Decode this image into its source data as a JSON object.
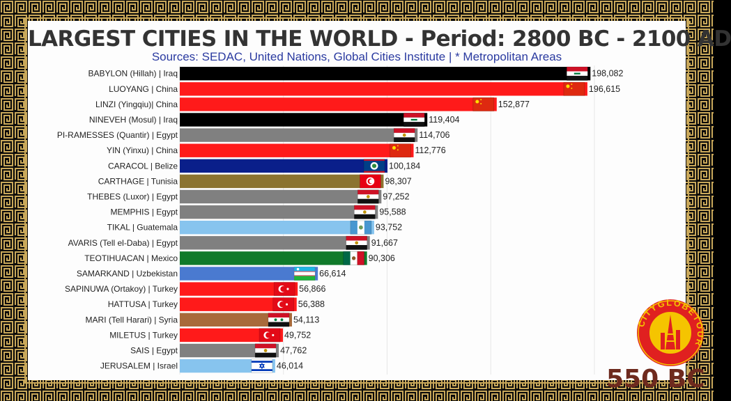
{
  "title": "LARGEST CITIES IN THE WORLD - Period: 2800 BC - 2100 AD",
  "subtitle": "Sources: SEDAC, United Nations, Global Cities Institute | * Metropolitan Areas",
  "period_label": "550 BC",
  "logo": {
    "text": "CITYGLOBETOUR",
    "ring_color": "#e02020",
    "inner_color": "#f5c400"
  },
  "chart_data": {
    "type": "bar",
    "orientation": "horizontal",
    "x_range": [
      0,
      200000
    ],
    "grid": true,
    "bars": [
      {
        "label": "BABYLON (Hillah) | Iraq",
        "value": 198082,
        "value_label": "198,082",
        "color": "#000000",
        "flag": "iraq"
      },
      {
        "label": "LUOYANG | China",
        "value": 196615,
        "value_label": "196,615",
        "color": "#ff1a1a",
        "flag": "china"
      },
      {
        "label": "LINZI (Yingqiu)| China",
        "value": 152877,
        "value_label": "152,877",
        "color": "#ff1a1a",
        "flag": "china"
      },
      {
        "label": "NINEVEH (Mosul) | Iraq",
        "value": 119404,
        "value_label": "119,404",
        "color": "#000000",
        "flag": "iraq"
      },
      {
        "label": "PI-RAMESSES (Quantir) | Egypt",
        "value": 114706,
        "value_label": "114,706",
        "color": "#808080",
        "flag": "egypt"
      },
      {
        "label": "YIN (Yinxu) | China",
        "value": 112776,
        "value_label": "112,776",
        "color": "#ff1a1a",
        "flag": "china"
      },
      {
        "label": "CARACOL | Belize",
        "value": 100184,
        "value_label": "100,184",
        "color": "#0a1f8a",
        "flag": "belize"
      },
      {
        "label": "CARTHAGE | Tunisia",
        "value": 98307,
        "value_label": "98,307",
        "color": "#8b7330",
        "flag": "tunisia"
      },
      {
        "label": "THEBES (Luxor) | Egypt",
        "value": 97252,
        "value_label": "97,252",
        "color": "#808080",
        "flag": "egypt"
      },
      {
        "label": "MEMPHIS | Egypt",
        "value": 95588,
        "value_label": "95,588",
        "color": "#808080",
        "flag": "egypt"
      },
      {
        "label": "TIKAL | Guatemala",
        "value": 93752,
        "value_label": "93,752",
        "color": "#87c4ee",
        "flag": "guatemala"
      },
      {
        "label": "AVARIS (Tell el-Daba) | Egypt",
        "value": 91667,
        "value_label": "91,667",
        "color": "#808080",
        "flag": "egypt"
      },
      {
        "label": "TEOTIHUACAN | Mexico",
        "value": 90306,
        "value_label": "90,306",
        "color": "#107a2a",
        "flag": "mexico"
      },
      {
        "label": "SAMARKAND | Uzbekistan",
        "value": 66614,
        "value_label": "66,614",
        "color": "#4a7ad0",
        "flag": "uzbekistan"
      },
      {
        "label": "SAPINUWA (Ortakoy) | Turkey",
        "value": 56866,
        "value_label": "56,866",
        "color": "#ff1a1a",
        "flag": "turkey"
      },
      {
        "label": "HATTUSA | Turkey",
        "value": 56388,
        "value_label": "56,388",
        "color": "#ff1a1a",
        "flag": "turkey"
      },
      {
        "label": "MARI (Tell Harari) | Syria",
        "value": 54113,
        "value_label": "54,113",
        "color": "#a86a3a",
        "flag": "syria"
      },
      {
        "label": "MILETUS | Turkey",
        "value": 49752,
        "value_label": "49,752",
        "color": "#ff1a1a",
        "flag": "turkey"
      },
      {
        "label": "SAIS | Egypt",
        "value": 47762,
        "value_label": "47,762",
        "color": "#808080",
        "flag": "egypt"
      },
      {
        "label": "JERUSALEM | Israel",
        "value": 46014,
        "value_label": "46,014",
        "color": "#87c4ee",
        "flag": "israel"
      }
    ]
  }
}
